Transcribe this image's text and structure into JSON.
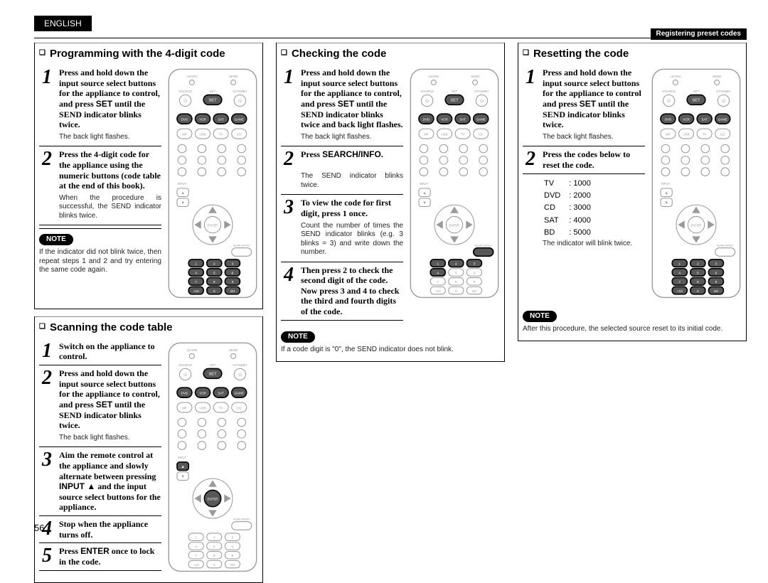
{
  "page_number": "56",
  "lang_tab": "ENGLISH",
  "header_right": "Registering preset codes",
  "note_label": "NOTE",
  "remote_labels": {
    "row1": [
      "LEARN",
      "",
      "SEND"
    ],
    "row2": [
      "SOURCE",
      "SET",
      "STANDBY"
    ],
    "row3": [
      "DVD",
      "VCR",
      "SAT",
      "GAME"
    ],
    "row4": [
      "MP",
      "USB",
      "TV",
      "CD"
    ],
    "row5": [
      "1",
      "2",
      "3"
    ],
    "row6": [
      "4",
      "5",
      "6"
    ],
    "row7": [
      "7",
      "8",
      "9"
    ],
    "row8": [
      "+10",
      "0",
      "SHIFT"
    ],
    "center": "ENTER",
    "input": "INPUT",
    "search": "SEARCH/INFO"
  },
  "sections": {
    "programming": {
      "title": "Programming with the 4-digit code",
      "steps": [
        {
          "n": "1",
          "bold": "Press and hold down the input source select buttons for the appliance to control, and press <span class='kw'>SET</span> until the SEND indicator blinks twice.",
          "sub": "The back light flashes."
        },
        {
          "n": "2",
          "bold": "Press the 4-digit code for the appliance using the numeric buttons (code table at the end of this book).",
          "sub": "When the procedure is successful, the SEND indicator blinks twice."
        }
      ],
      "note": "If the indicator did not blink twice, then repeat steps 1 and 2 and try entering the same code again."
    },
    "scanning": {
      "title": "Scanning the code table",
      "steps": [
        {
          "n": "1",
          "bold": "Switch on the appliance to control."
        },
        {
          "n": "2",
          "bold": "Press and hold down the input source select buttons for the appliance to control, and press <span class='kw'>SET</span> until the SEND indicator blinks twice.",
          "sub": "The back light flashes."
        },
        {
          "n": "3",
          "bold": "Aim the remote control at the appliance and slowly alternate between pressing <span class='kw'>INPUT ▲</span> and the input source select buttons for the appliance."
        },
        {
          "n": "4",
          "bold": "Stop when the appliance turns off."
        },
        {
          "n": "5",
          "bold": "Press <span class='kw'>ENTER</span> once to lock in the code."
        }
      ]
    },
    "checking": {
      "title": "Checking the code",
      "steps": [
        {
          "n": "1",
          "bold": "Press and hold down the input source select buttons for the appliance to control, and press <span class='kw'>SET</span> until the SEND indicator blinks twice and back light flashes.",
          "sub": "The back light flashes."
        },
        {
          "n": "2",
          "bold": "Press <span class='kw'>SEARCH/INFO</span>.",
          "sub": "The SEND indicator blinks twice."
        },
        {
          "n": "3",
          "bold": "To view the code for first digit, press 1 once.",
          "sub": "Count the number of times the SEND indicator blinks (e.g. 3 blinks = 3) and write down the number."
        },
        {
          "n": "4",
          "bold": "Then press 2 to check the second digit of the code. Now press 3 and 4 to check the third and fourth digits of the code."
        }
      ],
      "note": "If a code digit is \"0\", the SEND indicator does not blink."
    },
    "resetting": {
      "title": "Resetting the code",
      "steps": [
        {
          "n": "1",
          "bold": "Press and hold down the input source select buttons for the appliance to control and press <span class='kw'>SET</span> until the SEND indicator blinks twice.",
          "sub": "The back light flashes."
        },
        {
          "n": "2",
          "bold": "Press the codes below to reset the code."
        }
      ],
      "codes": [
        [
          "TV",
          "1000"
        ],
        [
          "DVD",
          "2000"
        ],
        [
          "CD",
          "3000"
        ],
        [
          "SAT",
          "4000"
        ],
        [
          "BD",
          "5000"
        ]
      ],
      "codes_sub": "The indicator will blink twice.",
      "note": "After this procedure, the selected source reset to its initial code."
    }
  },
  "style": {
    "accent": "#000000",
    "grey": "#9a9a9a",
    "highlight_fill": "#585858"
  }
}
